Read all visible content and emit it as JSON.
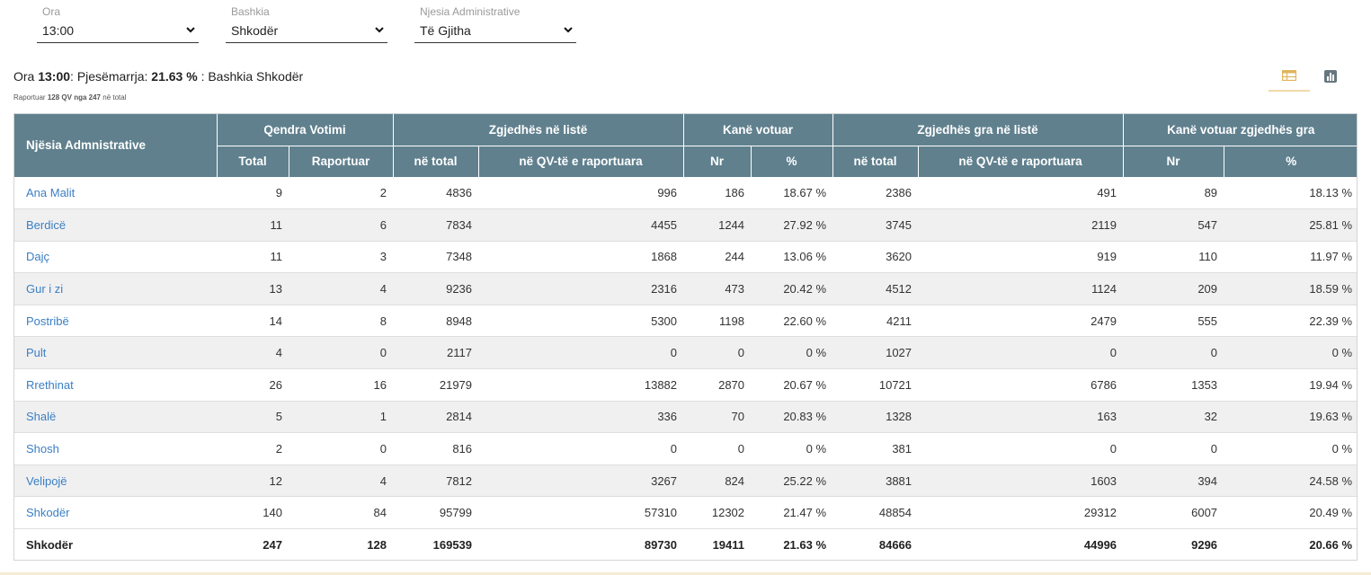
{
  "filters": [
    {
      "label": "Ora",
      "value": "13:00"
    },
    {
      "label": "Bashkia",
      "value": "Shkodër"
    },
    {
      "label": "Njesia Administrative",
      "value": "Të Gjitha"
    }
  ],
  "summary": {
    "ora_label": "Ora",
    "ora_value": "13:00",
    "pj_label": ": Pjesëmarrja:",
    "pj_value": "21.63 %",
    "bashkia_text": ": Bashkia Shkodër"
  },
  "subsummary": {
    "prefix": "Raportuar",
    "reported": "128 QV",
    "mid": "nga",
    "total": "247",
    "suffix": "në total"
  },
  "view_toggle": {
    "table_icon": "table-icon",
    "chart_icon": "bar-chart-icon"
  },
  "table": {
    "header_groups": {
      "first": "Njësia Admnistrative",
      "qendra": "Qendra Votimi",
      "zgjedhes": "Zgjedhës në listë",
      "kane": "Kanë votuar",
      "gra": "Zgjedhës gra në listë",
      "kane_gra": "Kanë votuar zgjedhës gra"
    },
    "sub_headers": [
      "Total",
      "Raportuar",
      "në total",
      "në QV-të e raportuara",
      "Nr",
      "%",
      "në total",
      "në QV-të e raportuara",
      "Nr",
      "%"
    ],
    "rows": [
      [
        "Ana Malit",
        "9",
        "2",
        "4836",
        "996",
        "186",
        "18.67 %",
        "2386",
        "491",
        "89",
        "18.13 %"
      ],
      [
        "Berdicë",
        "11",
        "6",
        "7834",
        "4455",
        "1244",
        "27.92 %",
        "3745",
        "2119",
        "547",
        "25.81 %"
      ],
      [
        "Dajç",
        "11",
        "3",
        "7348",
        "1868",
        "244",
        "13.06 %",
        "3620",
        "919",
        "110",
        "11.97 %"
      ],
      [
        "Gur i zi",
        "13",
        "4",
        "9236",
        "2316",
        "473",
        "20.42 %",
        "4512",
        "1124",
        "209",
        "18.59 %"
      ],
      [
        "Postribë",
        "14",
        "8",
        "8948",
        "5300",
        "1198",
        "22.60 %",
        "4211",
        "2479",
        "555",
        "22.39 %"
      ],
      [
        "Pult",
        "4",
        "0",
        "2117",
        "0",
        "0",
        "0 %",
        "1027",
        "0",
        "0",
        "0 %"
      ],
      [
        "Rrethinat",
        "26",
        "16",
        "21979",
        "13882",
        "2870",
        "20.67 %",
        "10721",
        "6786",
        "1353",
        "19.94 %"
      ],
      [
        "Shalë",
        "5",
        "1",
        "2814",
        "336",
        "70",
        "20.83 %",
        "1328",
        "163",
        "32",
        "19.63 %"
      ],
      [
        "Shosh",
        "2",
        "0",
        "816",
        "0",
        "0",
        "0 %",
        "381",
        "0",
        "0",
        "0 %"
      ],
      [
        "Velipojë",
        "12",
        "4",
        "7812",
        "3267",
        "824",
        "25.22 %",
        "3881",
        "1603",
        "394",
        "24.58 %"
      ],
      [
        "Shkodër",
        "140",
        "84",
        "95799",
        "57310",
        "12302",
        "21.47 %",
        "48854",
        "29312",
        "6007",
        "20.49 %"
      ]
    ],
    "total_row": [
      "Shkodër",
      "247",
      "128",
      "169539",
      "89730",
      "19411",
      "21.63 %",
      "84666",
      "44996",
      "9296",
      "20.66 %"
    ]
  }
}
